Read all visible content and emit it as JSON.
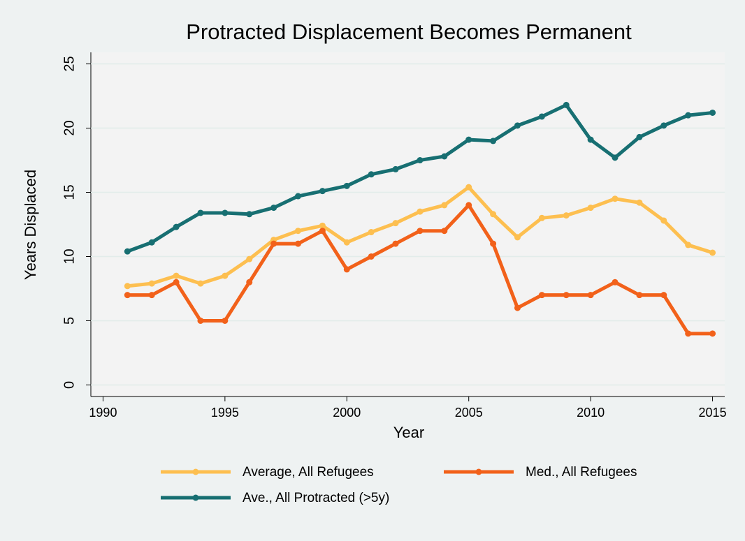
{
  "chart_data": {
    "type": "line",
    "title": "Protracted Displacement Becomes Permanent",
    "x_label": "Year",
    "y_label": "Years Displaced",
    "x": [
      1991,
      1992,
      1993,
      1994,
      1995,
      1996,
      1997,
      1998,
      1999,
      2000,
      2001,
      2002,
      2003,
      2004,
      2005,
      2006,
      2007,
      2008,
      2009,
      2010,
      2011,
      2012,
      2013,
      2014,
      2015
    ],
    "series": [
      {
        "name": "Average, All Refugees",
        "color": "#fdbf50",
        "values": [
          7.7,
          7.9,
          8.5,
          7.9,
          8.5,
          9.8,
          11.3,
          12.0,
          12.4,
          11.1,
          11.9,
          12.6,
          13.5,
          14.0,
          15.4,
          13.3,
          11.5,
          13.0,
          13.2,
          13.8,
          14.5,
          14.2,
          12.8,
          10.9,
          10.3
        ]
      },
      {
        "name": "Med., All Refugees",
        "color": "#f2611a",
        "values": [
          7,
          7,
          8,
          5,
          5,
          8,
          11,
          11,
          12,
          9,
          10,
          11,
          12,
          12,
          14,
          11,
          6,
          7,
          7,
          7,
          8,
          7,
          7,
          4,
          4
        ]
      },
      {
        "name": "Ave., All Protracted (>5y)",
        "color": "#176f72",
        "values": [
          10.4,
          11.1,
          12.3,
          13.4,
          13.4,
          13.3,
          13.8,
          14.7,
          15.1,
          15.5,
          16.4,
          16.8,
          17.5,
          17.8,
          19.1,
          19.0,
          20.2,
          20.9,
          21.8,
          19.1,
          17.7,
          19.3,
          20.2,
          21.0,
          21.2
        ]
      }
    ],
    "xlim": [
      1989.5,
      2015.5
    ],
    "xticks": [
      1990,
      1995,
      2000,
      2005,
      2010,
      2015
    ],
    "ylim": [
      -0.9,
      25.9
    ],
    "yticks": [
      0,
      5,
      10,
      15,
      20,
      25
    ],
    "grid": true
  }
}
